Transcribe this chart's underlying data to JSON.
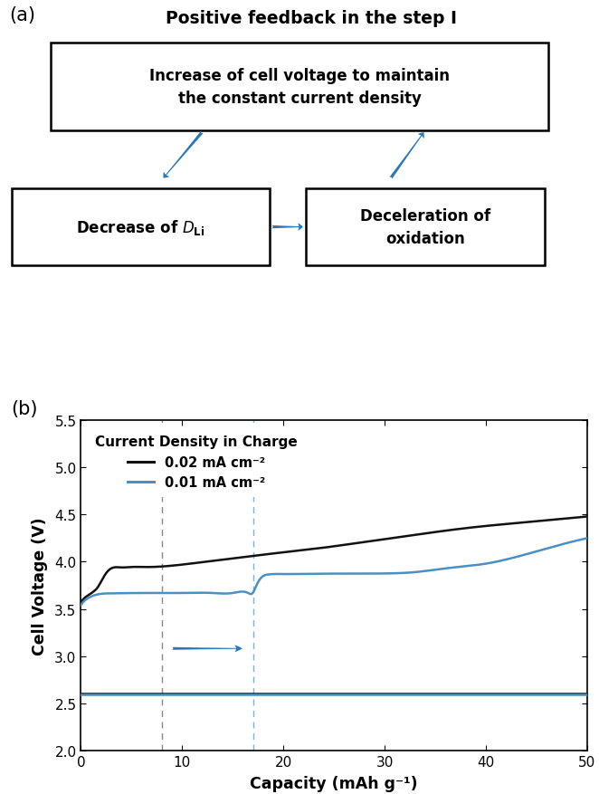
{
  "title_a": "Positive feedback in the step I",
  "label_a": "(a)",
  "label_b": "(b)",
  "box1_text": "Increase of cell voltage to maintain\nthe constant current density",
  "box2_text": "Decrease of ",
  "box2_italic": "D",
  "box2_sub": "Li",
  "box3_text": "Deceleration of\noxidation",
  "arrow_color": "#2878BE",
  "legend_title": "Current Density in Charge",
  "legend_line1": "0.02 mA cm⁻²",
  "legend_line2": "0.01 mA cm⁻²",
  "line1_color": "#111111",
  "line2_color": "#4A90C4",
  "xlabel": "Capacity (mAh g⁻¹)",
  "ylabel": "Cell Voltage (V)",
  "ylim": [
    2.0,
    5.5
  ],
  "xlim": [
    0,
    50
  ],
  "yticks": [
    2.0,
    2.5,
    3.0,
    3.5,
    4.0,
    4.5,
    5.0,
    5.5
  ],
  "xticks": [
    0,
    10,
    20,
    30,
    40,
    50
  ],
  "dashed_x1": 8,
  "dashed_x2": 17,
  "background_color": "#ffffff"
}
